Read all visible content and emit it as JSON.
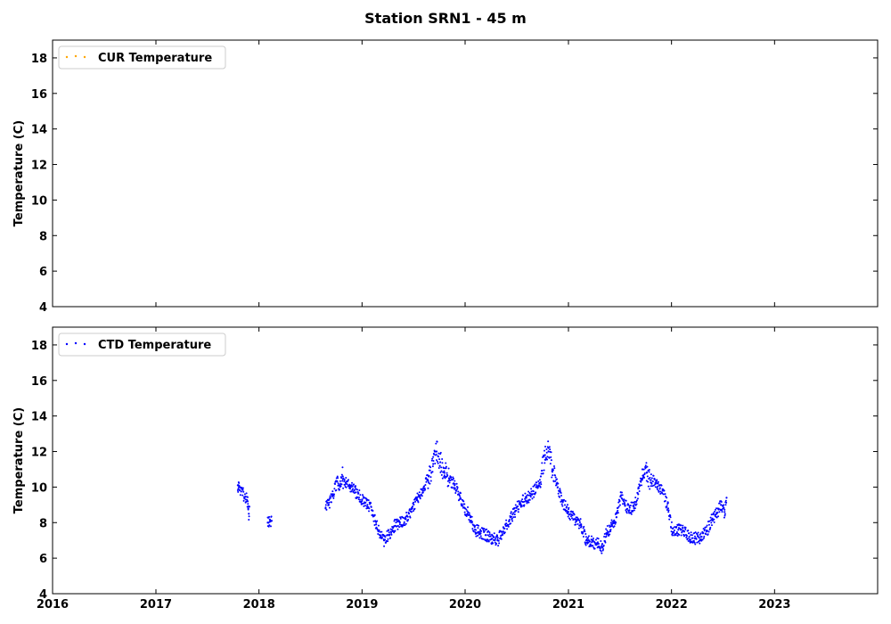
{
  "title": "Station SRN1 - 45 m",
  "chart_data": [
    {
      "type": "scatter",
      "ylabel": "Temperature (C)",
      "ylim": [
        4,
        19
      ],
      "yticks": [
        4,
        6,
        8,
        10,
        12,
        14,
        16,
        18
      ],
      "xlim": [
        "2016-01-01",
        "2024-01-01"
      ],
      "xticks": [
        "2016",
        "2017",
        "2018",
        "2019",
        "2020",
        "2021",
        "2022",
        "2023"
      ],
      "legend": {
        "label": "CUR Temperature",
        "color": "#ffa500",
        "position": "upper-left"
      },
      "series": [
        {
          "name": "CUR Temperature",
          "color": "#ffa500",
          "points": []
        }
      ]
    },
    {
      "type": "scatter",
      "ylabel": "Temperature (C)",
      "ylim": [
        4,
        19
      ],
      "yticks": [
        4,
        6,
        8,
        10,
        12,
        14,
        16,
        18
      ],
      "xlim": [
        "2016-01-01",
        "2024-01-01"
      ],
      "xticks": [
        "2016",
        "2017",
        "2018",
        "2019",
        "2020",
        "2021",
        "2022",
        "2023"
      ],
      "legend": {
        "label": "CTD Temperature",
        "color": "#0000ff",
        "position": "upper-left"
      },
      "series": [
        {
          "name": "CTD Temperature",
          "color": "#0000ff",
          "points": [
            [
              "2017-10-18",
              10.1
            ],
            [
              "2017-10-20",
              9.9
            ],
            [
              "2017-10-22",
              10.0
            ],
            [
              "2017-11-22",
              9.2
            ],
            [
              "2017-11-24",
              8.8
            ],
            [
              "2017-11-26",
              8.5
            ],
            [
              "2017-11-28",
              8.9
            ],
            [
              "2018-02-01",
              8.0
            ],
            [
              "2018-02-08",
              8.05
            ],
            [
              "2018-02-15",
              8.1
            ],
            [
              "2018-08-25",
              8.8
            ],
            [
              "2018-09-05",
              9.0
            ],
            [
              "2018-09-20",
              9.6
            ],
            [
              "2018-10-05",
              10.3
            ],
            [
              "2018-10-15",
              10.1
            ],
            [
              "2018-10-25",
              10.6
            ],
            [
              "2018-11-05",
              10.2
            ],
            [
              "2018-11-20",
              10.0
            ],
            [
              "2018-12-10",
              9.7
            ],
            [
              "2019-01-01",
              9.3
            ],
            [
              "2019-01-20",
              9.0
            ],
            [
              "2019-02-05",
              8.7
            ],
            [
              "2019-02-20",
              7.9
            ],
            [
              "2019-03-05",
              7.3
            ],
            [
              "2019-03-20",
              7.0
            ],
            [
              "2019-04-05",
              7.3
            ],
            [
              "2019-04-25",
              7.8
            ],
            [
              "2019-05-15",
              8.0
            ],
            [
              "2019-06-05",
              8.2
            ],
            [
              "2019-06-25",
              8.6
            ],
            [
              "2019-07-15",
              9.3
            ],
            [
              "2019-08-05",
              9.9
            ],
            [
              "2019-08-25",
              10.6
            ],
            [
              "2019-09-10",
              11.3
            ],
            [
              "2019-09-22",
              12.0
            ],
            [
              "2019-10-05",
              11.4
            ],
            [
              "2019-10-20",
              10.8
            ],
            [
              "2019-11-05",
              10.5
            ],
            [
              "2019-11-25",
              10.1
            ],
            [
              "2019-12-15",
              9.4
            ],
            [
              "2020-01-01",
              8.8
            ],
            [
              "2020-01-20",
              8.3
            ],
            [
              "2020-02-05",
              7.6
            ],
            [
              "2020-02-25",
              7.4
            ],
            [
              "2020-03-15",
              7.3
            ],
            [
              "2020-04-05",
              7.1
            ],
            [
              "2020-04-25",
              7.0
            ],
            [
              "2020-05-15",
              7.5
            ],
            [
              "2020-06-05",
              8.1
            ],
            [
              "2020-06-25",
              8.6
            ],
            [
              "2020-07-15",
              9.1
            ],
            [
              "2020-08-05",
              9.4
            ],
            [
              "2020-08-25",
              9.6
            ],
            [
              "2020-09-10",
              10.0
            ],
            [
              "2020-09-25",
              10.6
            ],
            [
              "2020-10-10",
              11.8
            ],
            [
              "2020-10-22",
              12.2
            ],
            [
              "2020-11-05",
              11.0
            ],
            [
              "2020-11-20",
              10.2
            ],
            [
              "2020-12-10",
              9.2
            ],
            [
              "2021-01-01",
              8.6
            ],
            [
              "2021-01-25",
              8.2
            ],
            [
              "2021-02-15",
              7.9
            ],
            [
              "2021-03-05",
              7.0
            ],
            [
              "2021-03-25",
              6.9
            ],
            [
              "2021-04-15",
              6.8
            ],
            [
              "2021-05-01",
              6.6
            ],
            [
              "2021-05-15",
              7.4
            ],
            [
              "2021-06-01",
              7.8
            ],
            [
              "2021-06-20",
              8.3
            ],
            [
              "2021-07-05",
              9.5
            ],
            [
              "2021-07-20",
              9.0
            ],
            [
              "2021-08-05",
              8.7
            ],
            [
              "2021-08-20",
              8.9
            ],
            [
              "2021-09-05",
              9.6
            ],
            [
              "2021-09-20",
              11.0
            ],
            [
              "2021-10-05",
              10.8
            ],
            [
              "2021-10-20",
              10.4
            ],
            [
              "2021-11-10",
              10.2
            ],
            [
              "2021-12-01",
              9.8
            ],
            [
              "2021-12-20",
              8.8
            ],
            [
              "2022-01-05",
              7.4
            ],
            [
              "2022-01-25",
              7.6
            ],
            [
              "2022-02-15",
              7.5
            ],
            [
              "2022-03-05",
              7.2
            ],
            [
              "2022-03-25",
              7.1
            ],
            [
              "2022-04-15",
              7.2
            ],
            [
              "2022-05-05",
              7.5
            ],
            [
              "2022-05-25",
              8.2
            ],
            [
              "2022-06-10",
              8.5
            ],
            [
              "2022-06-25",
              9.0
            ],
            [
              "2022-07-08",
              8.6
            ],
            [
              "2022-07-15",
              9.4
            ]
          ]
        }
      ]
    }
  ]
}
